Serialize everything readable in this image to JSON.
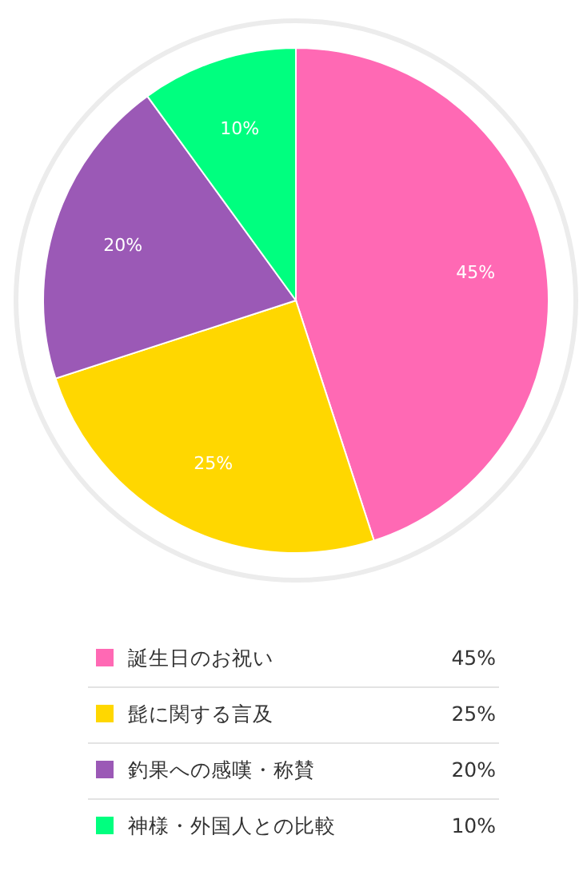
{
  "chart_data": {
    "type": "pie",
    "categories": [
      "誕生日のお祝い",
      "髭に関する言及",
      "釣果への感嘆・称賛",
      "神様・外国人との比較"
    ],
    "values": [
      45,
      25,
      20,
      10
    ],
    "colors": [
      "#ff69b4",
      "#ffd700",
      "#9b59b6",
      "#00ff7f"
    ],
    "value_labels": [
      "45%",
      "25%",
      "20%",
      "10%"
    ],
    "legend": "bottom"
  }
}
